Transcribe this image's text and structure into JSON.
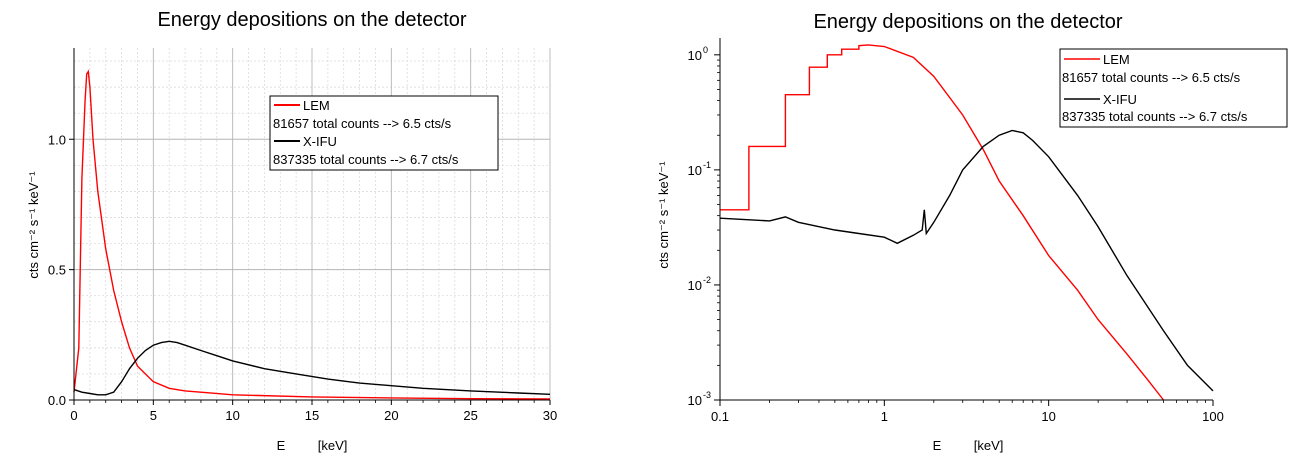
{
  "chart_data": [
    {
      "type": "line",
      "title": "Energy depositions on the detector",
      "xlabel": "E         [keV]",
      "ylabel": "cts cm⁻² s⁻¹ keV⁻¹",
      "xlim": [
        0,
        30
      ],
      "ylim": [
        0,
        1.35
      ],
      "xscale": "linear",
      "yscale": "linear",
      "grid": true,
      "legend_position": "top-right",
      "xticks": [
        "0",
        "5",
        "10",
        "15",
        "20",
        "25",
        "30"
      ],
      "xtick_values": [
        0,
        5,
        10,
        15,
        20,
        25,
        30
      ],
      "yticks": [
        "0.0",
        "0.5",
        "1.0"
      ],
      "ytick_values": [
        0,
        0.5,
        1.0
      ],
      "legend": [
        {
          "label": "LEM",
          "color": "#ff0000"
        },
        {
          "label": "81657 total counts --> 6.5 cts/s",
          "color": ""
        },
        {
          "label": "X-IFU",
          "color": "#000000"
        },
        {
          "label": "837335 total counts --> 6.7 cts/s",
          "color": ""
        }
      ],
      "series": [
        {
          "name": "LEM",
          "color": "#ff0000",
          "x": [
            0.0,
            0.3,
            0.5,
            0.7,
            0.8,
            0.9,
            1.0,
            1.2,
            1.5,
            2.0,
            2.5,
            3.0,
            3.5,
            4.0,
            5.0,
            6.0,
            7.0,
            8.0,
            10.0,
            15.0,
            20.0,
            25.0,
            30.0
          ],
          "y": [
            0.03,
            0.2,
            0.85,
            1.15,
            1.25,
            1.26,
            1.2,
            1.0,
            0.8,
            0.58,
            0.42,
            0.3,
            0.2,
            0.13,
            0.07,
            0.045,
            0.035,
            0.03,
            0.02,
            0.012,
            0.008,
            0.005,
            0.004
          ]
        },
        {
          "name": "X-IFU",
          "color": "#000000",
          "x": [
            0.0,
            0.5,
            1.0,
            1.5,
            2.0,
            2.5,
            3.0,
            3.5,
            4.0,
            4.5,
            5.0,
            5.5,
            6.0,
            6.5,
            7.0,
            8.0,
            9.0,
            10.0,
            12.0,
            14.0,
            16.0,
            18.0,
            20.0,
            22.0,
            25.0,
            28.0,
            30.0
          ],
          "y": [
            0.04,
            0.03,
            0.025,
            0.02,
            0.02,
            0.03,
            0.07,
            0.12,
            0.16,
            0.19,
            0.21,
            0.22,
            0.225,
            0.22,
            0.21,
            0.19,
            0.17,
            0.15,
            0.12,
            0.1,
            0.08,
            0.065,
            0.055,
            0.045,
            0.035,
            0.027,
            0.022
          ]
        }
      ]
    },
    {
      "type": "line",
      "title": "Energy depositions on the detector",
      "xlabel": "E         [keV]",
      "ylabel": "cts cm⁻² s⁻¹ keV⁻¹",
      "xlim": [
        0.1,
        100
      ],
      "ylim": [
        0.001,
        1.4
      ],
      "xscale": "log",
      "yscale": "log",
      "grid": false,
      "legend_position": "top-right",
      "xticks": [
        "0.1",
        "1",
        "10",
        "100"
      ],
      "xtick_values": [
        0.1,
        1,
        10,
        100
      ],
      "yticks": [
        {
          "base": "10",
          "exp": "0"
        },
        {
          "base": "10",
          "exp": "-1"
        },
        {
          "base": "10",
          "exp": "-2"
        },
        {
          "base": "10",
          "exp": "-3"
        }
      ],
      "ytick_values": [
        1,
        0.1,
        0.01,
        0.001
      ],
      "legend": [
        {
          "label": "LEM",
          "color": "#ff0000"
        },
        {
          "label": "81657 total counts --> 6.5 cts/s",
          "color": ""
        },
        {
          "label": "X-IFU",
          "color": "#000000"
        },
        {
          "label": "837335 total counts --> 6.7 cts/s",
          "color": ""
        }
      ],
      "series": [
        {
          "name": "LEM",
          "color": "#ff0000",
          "style": "step-then-line",
          "x": [
            0.1,
            0.15,
            0.25,
            0.35,
            0.45,
            0.55,
            0.7,
            0.8,
            1.0,
            1.5,
            2.0,
            3.0,
            4.0,
            5.0,
            7.0,
            10.0,
            15.0,
            20.0,
            30.0,
            40.0,
            50.0
          ],
          "y": [
            0.045,
            0.16,
            0.45,
            0.78,
            1.0,
            1.12,
            1.2,
            1.22,
            1.18,
            0.95,
            0.65,
            0.3,
            0.15,
            0.08,
            0.04,
            0.018,
            0.009,
            0.005,
            0.0025,
            0.0015,
            0.001
          ]
        },
        {
          "name": "X-IFU",
          "color": "#000000",
          "x": [
            0.1,
            0.2,
            0.25,
            0.3,
            0.5,
            0.7,
            1.0,
            1.2,
            1.5,
            1.7,
            1.75,
            1.8,
            2.0,
            2.5,
            3.0,
            4.0,
            5.0,
            6.0,
            7.0,
            8.0,
            10.0,
            15.0,
            20.0,
            30.0,
            50.0,
            70.0,
            100.0
          ],
          "y": [
            0.038,
            0.036,
            0.039,
            0.035,
            0.03,
            0.028,
            0.026,
            0.023,
            0.027,
            0.03,
            0.045,
            0.028,
            0.035,
            0.06,
            0.1,
            0.16,
            0.2,
            0.22,
            0.21,
            0.18,
            0.13,
            0.06,
            0.032,
            0.012,
            0.004,
            0.002,
            0.0012
          ]
        }
      ]
    }
  ]
}
